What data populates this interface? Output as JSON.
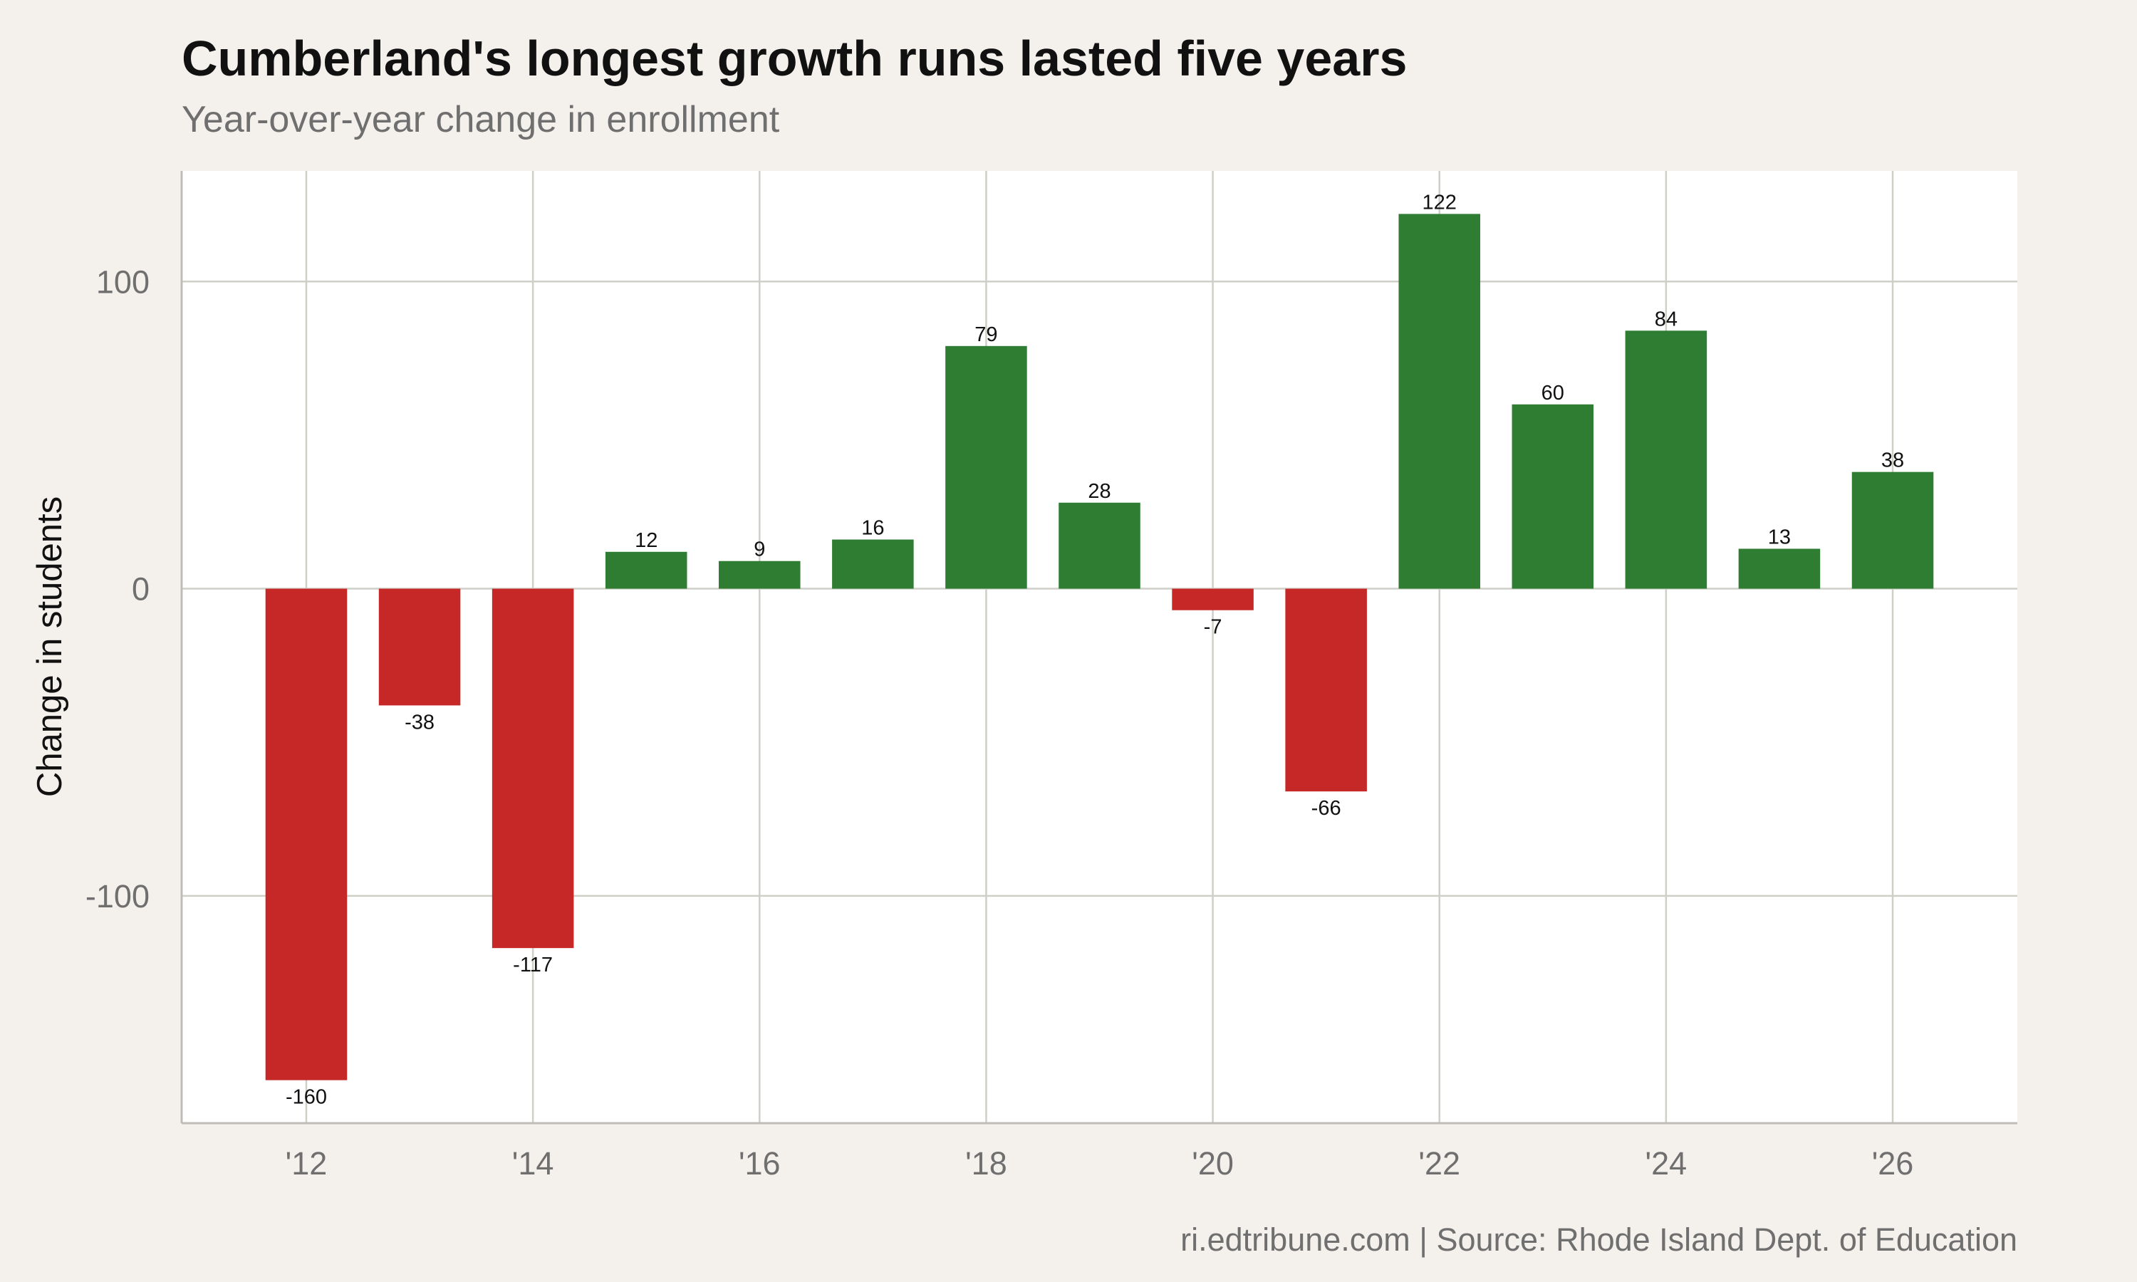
{
  "title": "Cumberland's longest growth runs lasted five years",
  "subtitle": "Year-over-year change in enrollment",
  "caption": "ri.edtribune.com | Source: Rhode Island Dept. of Education",
  "colors": {
    "background": "#f4f1ec",
    "plot_background": "#ffffff",
    "gridline": "#cfcfc7",
    "increase": "#2e7d32",
    "decrease": "#c62828"
  },
  "chart_data": {
    "type": "bar",
    "title": "Cumberland's longest growth runs lasted five years",
    "subtitle": "Year-over-year change in enrollment",
    "xlabel": "",
    "ylabel": "Change in students",
    "x": [
      2012,
      2013,
      2014,
      2015,
      2016,
      2017,
      2018,
      2019,
      2020,
      2021,
      2022,
      2023,
      2024,
      2025,
      2026
    ],
    "values": [
      -160,
      -38,
      -117,
      12,
      9,
      16,
      79,
      28,
      -7,
      -66,
      122,
      60,
      84,
      13,
      38
    ],
    "xlim": [
      2010.9,
      2027.1
    ],
    "ylim": [
      -174,
      136
    ],
    "x_ticks": [
      2012,
      2014,
      2016,
      2018,
      2020,
      2022,
      2024,
      2026
    ],
    "x_tick_labels": [
      "'12",
      "'14",
      "'16",
      "'18",
      "'20",
      "'22",
      "'24",
      "'26"
    ],
    "y_ticks": [
      -100,
      0,
      100
    ],
    "y_tick_labels": [
      "-100",
      "0",
      "100"
    ],
    "grid": true,
    "legend": "none",
    "data_labels": true
  }
}
